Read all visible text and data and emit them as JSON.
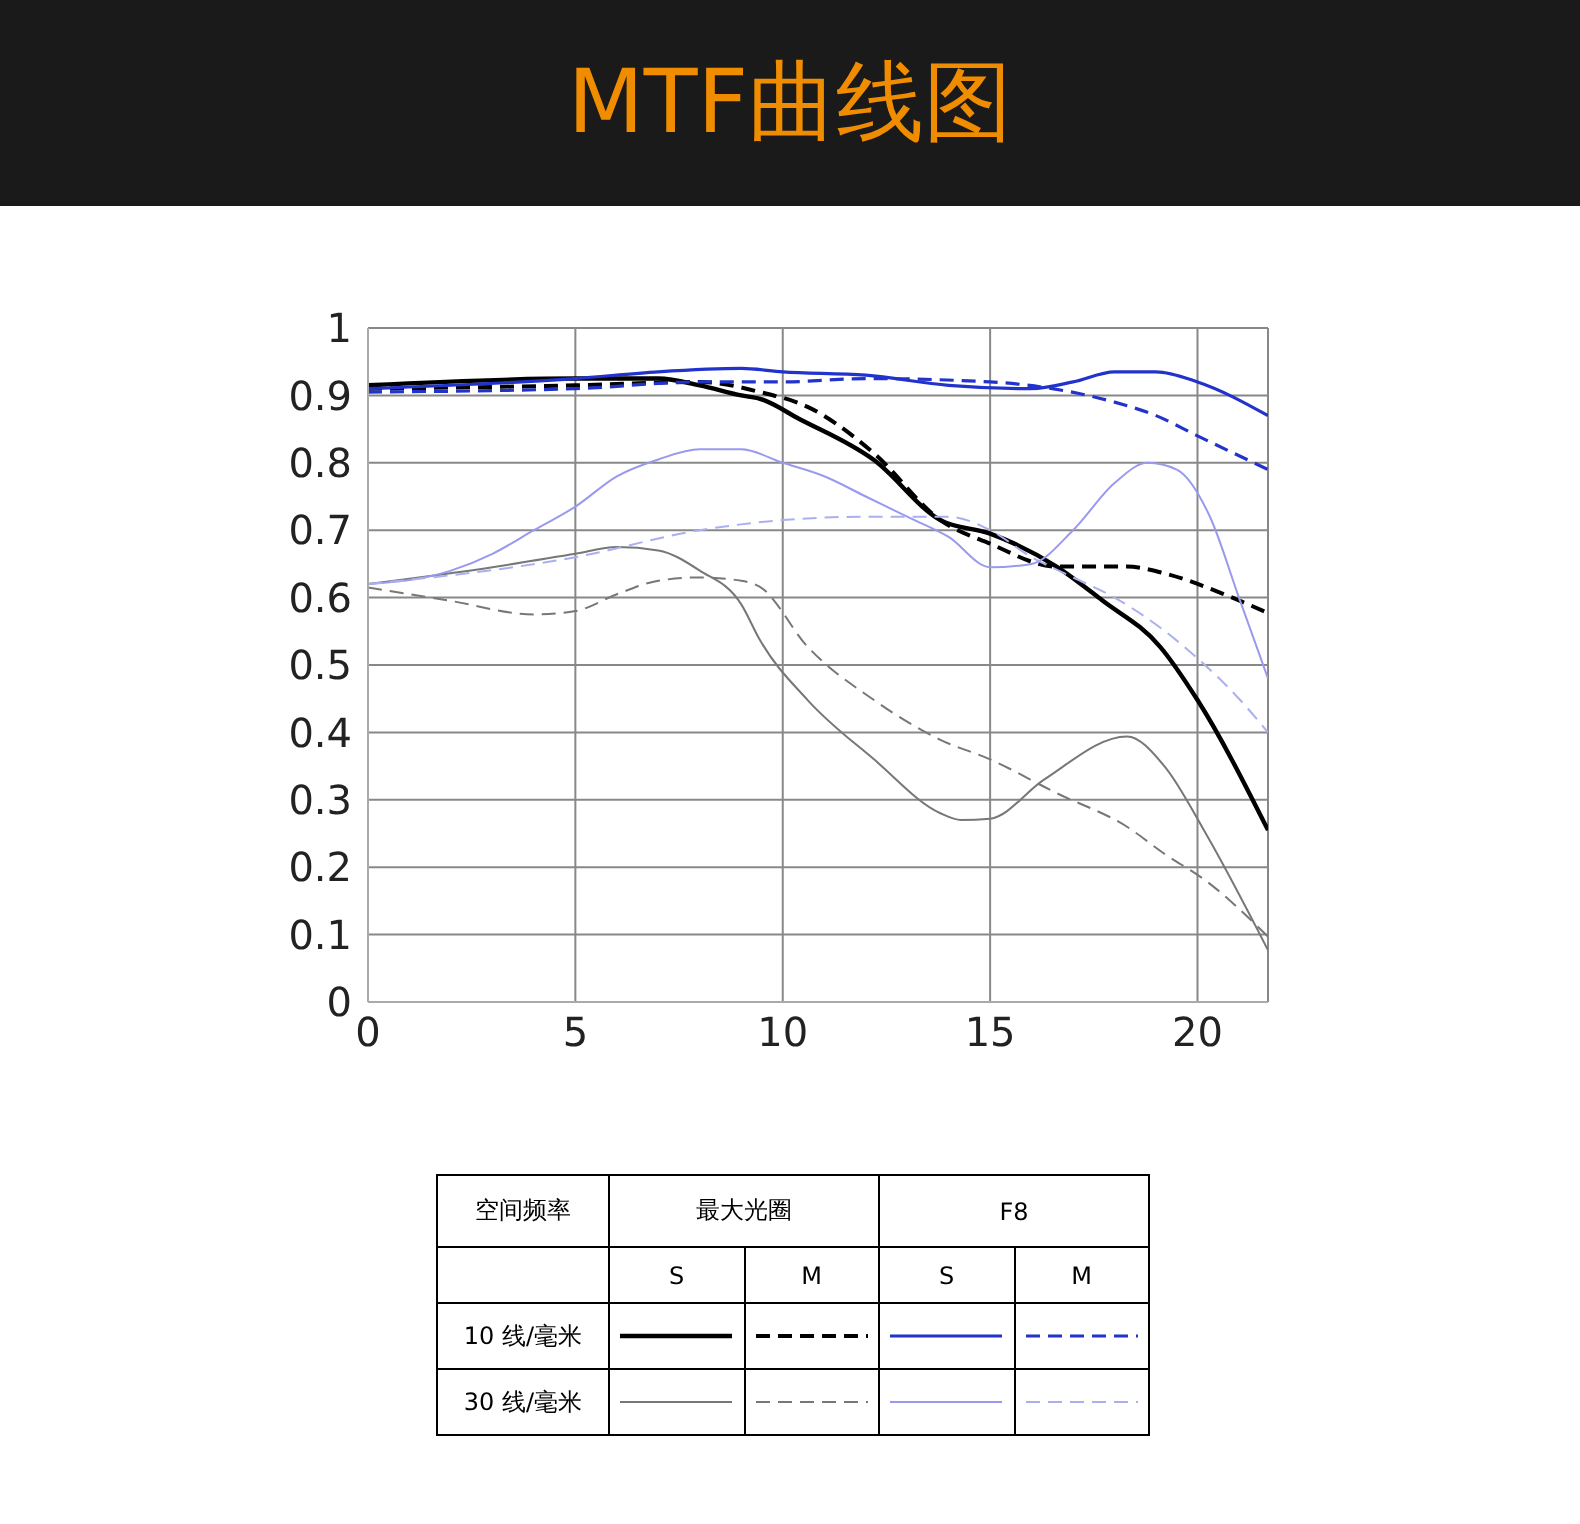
{
  "chart_data": {
    "type": "line",
    "title": "MTF曲线图",
    "xlim": [
      0,
      21.7
    ],
    "xticks": [
      0,
      5,
      10,
      15,
      20
    ],
    "ylim": [
      0,
      1
    ],
    "yticks": [
      0,
      0.1,
      0.2,
      0.3,
      0.4,
      0.5,
      0.6,
      0.7,
      0.8,
      0.9,
      1
    ],
    "grid": true,
    "legend": false,
    "marker": "none",
    "annotations": [
      "空间频率",
      "最大光圈",
      "F8",
      "S",
      "M",
      "S",
      "M",
      "10 线/毫米",
      "30 线/毫米"
    ],
    "series": [
      {
        "color": "#000000",
        "line_style": "solid",
        "x": [
          0,
          5,
          7,
          8,
          9,
          9.45,
          10.4,
          12.2,
          13.8,
          15,
          16.6,
          17.7,
          19.1,
          20,
          21.7
        ],
        "values": [
          0.915,
          0.925,
          0.925,
          0.915,
          0.9,
          0.895,
          0.865,
          0.804,
          0.715,
          0.695,
          0.646,
          0.596,
          0.527,
          0.448,
          0.255
        ]
      },
      {
        "color": "#000000",
        "line_style": "dashed",
        "x": [
          0,
          5,
          8,
          9.45,
          10.6,
          12.2,
          13.8,
          15,
          16.6,
          18.3,
          19.2,
          20.6,
          21.7
        ],
        "values": [
          0.91,
          0.915,
          0.92,
          0.905,
          0.883,
          0.814,
          0.715,
          0.68,
          0.646,
          0.646,
          0.636,
          0.606,
          0.577
        ]
      },
      {
        "color": "#2233cc",
        "line_style": "solid",
        "x": [
          0,
          5,
          7,
          9,
          10,
          12,
          14,
          16,
          17,
          18,
          19,
          20,
          21.7
        ],
        "values": [
          0.91,
          0.925,
          0.935,
          0.94,
          0.935,
          0.93,
          0.915,
          0.91,
          0.92,
          0.935,
          0.935,
          0.92,
          0.87
        ]
      },
      {
        "color": "#2233cc",
        "line_style": "dashed",
        "x": [
          0,
          5,
          8,
          10,
          12,
          15,
          16.5,
          18,
          19,
          20,
          21.7
        ],
        "values": [
          0.905,
          0.91,
          0.92,
          0.92,
          0.925,
          0.92,
          0.91,
          0.89,
          0.87,
          0.84,
          0.79
        ]
      },
      {
        "color": "#777777",
        "line_style": "solid",
        "x": [
          0,
          3,
          5,
          6,
          7,
          8,
          9,
          9.45,
          10.6,
          12.2,
          13.8,
          14.3,
          15,
          16.3,
          18.3,
          19.2,
          20.2,
          21.7
        ],
        "values": [
          0.62,
          0.645,
          0.665,
          0.675,
          0.67,
          0.64,
          0.59,
          0.537,
          0.448,
          0.36,
          0.28,
          0.27,
          0.272,
          0.33,
          0.394,
          0.35,
          0.25,
          0.077
        ]
      },
      {
        "color": "#777777",
        "line_style": "dashed",
        "x": [
          0,
          2,
          4,
          5,
          6,
          7,
          8,
          9,
          9.45,
          10.6,
          12.2,
          13.8,
          15,
          16.6,
          18.3,
          19.2,
          20.2,
          21.7
        ],
        "values": [
          0.615,
          0.595,
          0.575,
          0.58,
          0.605,
          0.625,
          0.63,
          0.625,
          0.616,
          0.527,
          0.448,
          0.389,
          0.36,
          0.31,
          0.26,
          0.22,
          0.18,
          0.097
        ]
      },
      {
        "color": "#9999ee",
        "line_style": "solid",
        "x": [
          0,
          2,
          3,
          4,
          5,
          6,
          7,
          8,
          9,
          10,
          11,
          12,
          13,
          14,
          15,
          16,
          17,
          18,
          18.8,
          19.5,
          20.3,
          21,
          21.7
        ],
        "values": [
          0.62,
          0.64,
          0.665,
          0.7,
          0.735,
          0.78,
          0.805,
          0.82,
          0.82,
          0.8,
          0.78,
          0.75,
          0.72,
          0.69,
          0.645,
          0.65,
          0.7,
          0.77,
          0.8,
          0.79,
          0.72,
          0.6,
          0.48
        ]
      },
      {
        "color": "#aab0ee",
        "line_style": "dashed",
        "x": [
          0,
          5,
          8,
          10,
          12,
          14,
          15,
          16,
          17,
          18,
          19,
          20,
          21,
          21.7
        ],
        "values": [
          0.62,
          0.66,
          0.7,
          0.715,
          0.72,
          0.72,
          0.7,
          0.66,
          0.63,
          0.6,
          0.56,
          0.51,
          0.45,
          0.4
        ]
      }
    ]
  }
}
